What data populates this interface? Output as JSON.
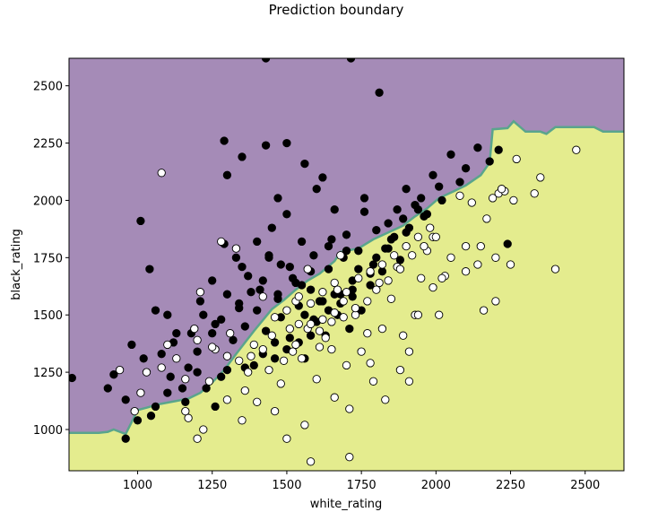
{
  "chart_data": {
    "type": "scatter",
    "title": "Prediction boundary",
    "xlabel": "white_rating",
    "ylabel": "black_rating",
    "xlim": [
      770,
      2630
    ],
    "ylim": [
      820,
      2620
    ],
    "xticks": [
      1000,
      1250,
      1500,
      1750,
      2000,
      2250,
      2500
    ],
    "yticks": [
      1000,
      1250,
      1500,
      1750,
      2000,
      2250,
      2500
    ],
    "grid": false,
    "legend": "none",
    "colors": {
      "region_black": "#a58bb7",
      "region_white": "#e4ec8e",
      "boundary": "#5aa58c",
      "point_black": "#000000",
      "point_white": "#ffffff",
      "point_edge": "#000000"
    },
    "decision_boundary": [
      [
        770,
        985
      ],
      [
        870,
        985
      ],
      [
        900,
        990
      ],
      [
        920,
        1000
      ],
      [
        960,
        980
      ],
      [
        1000,
        1085
      ],
      [
        1030,
        1095
      ],
      [
        1070,
        1110
      ],
      [
        1130,
        1125
      ],
      [
        1170,
        1135
      ],
      [
        1210,
        1160
      ],
      [
        1250,
        1205
      ],
      [
        1290,
        1260
      ],
      [
        1330,
        1330
      ],
      [
        1390,
        1430
      ],
      [
        1450,
        1525
      ],
      [
        1490,
        1565
      ],
      [
        1530,
        1610
      ],
      [
        1570,
        1650
      ],
      [
        1610,
        1680
      ],
      [
        1660,
        1735
      ],
      [
        1680,
        1775
      ],
      [
        1740,
        1790
      ],
      [
        1790,
        1830
      ],
      [
        1840,
        1860
      ],
      [
        1890,
        1890
      ],
      [
        1930,
        1930
      ],
      [
        1970,
        1965
      ],
      [
        2010,
        2010
      ],
      [
        2060,
        2040
      ],
      [
        2100,
        2065
      ],
      [
        2150,
        2110
      ],
      [
        2180,
        2165
      ],
      [
        2190,
        2310
      ],
      [
        2240,
        2315
      ],
      [
        2260,
        2345
      ],
      [
        2300,
        2300
      ],
      [
        2350,
        2300
      ],
      [
        2370,
        2290
      ],
      [
        2400,
        2320
      ],
      [
        2530,
        2320
      ],
      [
        2560,
        2300
      ],
      [
        2630,
        2300
      ]
    ],
    "series": [
      {
        "outcome": "black",
        "x": [
          780,
          900,
          920,
          960,
          980,
          1010,
          1020,
          1045,
          1060,
          1080,
          1100,
          1110,
          1130,
          1150,
          1170,
          1200,
          1210,
          1230,
          1250,
          1260,
          1280,
          1290,
          1300,
          1320,
          1340,
          1350,
          1360,
          1380,
          1390,
          1400,
          1420,
          1430,
          1440,
          1460,
          1470,
          1480,
          1500,
          1510,
          1520,
          1540,
          1550,
          1560,
          1580,
          1590,
          1600,
          1620,
          1630,
          1640,
          1660,
          1670,
          1680,
          1700,
          1710,
          1720,
          1740,
          1750,
          1760,
          1780,
          1790,
          1800,
          1820,
          1830,
          1840,
          1860,
          1870,
          1880,
          1900,
          1910,
          1930,
          1950,
          1970,
          1990,
          2010,
          2050,
          2080,
          2100,
          2140,
          2180,
          2210,
          2240,
          1290,
          1350,
          1430,
          1500,
          1560,
          1300,
          1470,
          1620,
          1760,
          1810,
          1040,
          1180,
          1250,
          1330,
          1400,
          1450,
          1480,
          1530,
          1590,
          1650,
          1700,
          1220,
          1300,
          1370,
          1440,
          1510,
          1580,
          1640,
          1690,
          1740,
          1800,
          1850,
          1890,
          1940,
          1120,
          1260,
          1340,
          1410,
          1470,
          1550,
          1610,
          1660,
          1720,
          1780,
          1840,
          1900,
          1960,
          2020,
          1430,
          1715,
          1560,
          1600,
          1640,
          1680,
          1720,
          1500,
          1540,
          1580,
          1420,
          1460,
          1360,
          1200,
          1280,
          1160,
          1100,
          1060,
          1000,
          960
        ],
        "y": [
          1225,
          1180,
          1240,
          960,
          1370,
          1910,
          1310,
          1060,
          1520,
          1330,
          1500,
          1230,
          1420,
          1180,
          1270,
          1340,
          1560,
          1180,
          1420,
          1100,
          1480,
          1810,
          1260,
          1390,
          1530,
          1710,
          1450,
          1600,
          1280,
          1520,
          1650,
          1430,
          1750,
          1380,
          1590,
          1490,
          1940,
          1400,
          1660,
          1540,
          1820,
          1310,
          1610,
          1480,
          2050,
          1560,
          1410,
          1700,
          1960,
          1500,
          1590,
          1850,
          1440,
          1650,
          1780,
          1520,
          2010,
          1630,
          1720,
          1870,
          1690,
          1790,
          1900,
          1840,
          1960,
          1740,
          2050,
          1880,
          1980,
          2010,
          1940,
          2110,
          2060,
          2200,
          2080,
          2140,
          2230,
          2170,
          2220,
          1810,
          2260,
          2190,
          2240,
          2250,
          2160,
          2110,
          2010,
          2100,
          1950,
          2470,
          1700,
          1420,
          1650,
          1750,
          1820,
          1880,
          1720,
          1640,
          1760,
          1830,
          1780,
          1500,
          1590,
          1670,
          1760,
          1710,
          1690,
          1800,
          1750,
          1700,
          1750,
          1830,
          1920,
          1960,
          1380,
          1460,
          1550,
          1610,
          1570,
          1630,
          1560,
          1590,
          1610,
          1680,
          1790,
          1860,
          1930,
          2000,
          2620,
          2620,
          1500,
          1470,
          1520,
          1550,
          1580,
          1350,
          1380,
          1410,
          1330,
          1310,
          1270,
          1250,
          1230,
          1120,
          1160,
          1100,
          1040,
          1130
        ]
      },
      {
        "outcome": "white",
        "x": [
          940,
          990,
          1010,
          1030,
          1080,
          1100,
          1130,
          1160,
          1170,
          1190,
          1210,
          1220,
          1240,
          1260,
          1280,
          1300,
          1310,
          1330,
          1350,
          1370,
          1390,
          1400,
          1420,
          1440,
          1460,
          1480,
          1500,
          1510,
          1530,
          1550,
          1570,
          1580,
          1600,
          1620,
          1630,
          1650,
          1670,
          1680,
          1700,
          1710,
          1730,
          1750,
          1770,
          1790,
          1810,
          1830,
          1850,
          1870,
          1890,
          1910,
          1930,
          1950,
          1970,
          1990,
          2010,
          2030,
          2050,
          2080,
          2100,
          2140,
          2170,
          2190,
          2200,
          2210,
          2230,
          2250,
          2270,
          2330,
          2350,
          2400,
          2470,
          1080,
          1200,
          1360,
          1460,
          1520,
          1560,
          1610,
          1660,
          1690,
          1710,
          1780,
          1820,
          1880,
          1910,
          1940,
          1990,
          2020,
          2120,
          2160,
          2200,
          1450,
          1490,
          1530,
          1570,
          1610,
          1650,
          1690,
          1730,
          1770,
          1800,
          1840,
          1880,
          1920,
          1960,
          2000,
          1540,
          1580,
          1620,
          1660,
          1700,
          1740,
          1780,
          1820,
          1860,
          1900,
          1940,
          1980,
          1500,
          1540,
          1580,
          1620,
          1660,
          1340,
          1380,
          1420,
          1300,
          1250,
          1200,
          1160,
          2100,
          2150,
          2220,
          2260
        ],
        "y": [
          1260,
          1080,
          1160,
          1250,
          2120,
          1370,
          1310,
          1220,
          1050,
          1440,
          1600,
          1000,
          1210,
          1350,
          1820,
          1130,
          1420,
          1790,
          1040,
          1250,
          1370,
          1120,
          1580,
          1260,
          1490,
          1200,
          960,
          1440,
          1560,
          1310,
          1700,
          860,
          1220,
          1480,
          1400,
          1350,
          1610,
          1760,
          1280,
          880,
          1500,
          1340,
          1420,
          1210,
          1640,
          1130,
          1570,
          1710,
          1410,
          1340,
          1500,
          1660,
          1780,
          1840,
          1500,
          1670,
          1750,
          2020,
          1800,
          1720,
          1920,
          2010,
          1560,
          2030,
          2040,
          1720,
          2180,
          2030,
          2100,
          1700,
          2220,
          1270,
          960,
          1170,
          1080,
          1340,
          1020,
          1360,
          1140,
          1560,
          1090,
          1290,
          1440,
          1260,
          1210,
          1500,
          1620,
          1660,
          1990,
          1520,
          1750,
          1410,
          1300,
          1370,
          1440,
          1430,
          1470,
          1490,
          1530,
          1560,
          1610,
          1650,
          1700,
          1760,
          1800,
          1840,
          1580,
          1550,
          1600,
          1640,
          1600,
          1660,
          1690,
          1720,
          1760,
          1800,
          1840,
          1880,
          1520,
          1460,
          1460,
          1480,
          1510,
          1300,
          1320,
          1350,
          1320,
          1360,
          1390,
          1080,
          1690,
          1800,
          2050,
          2000
        ]
      }
    ]
  }
}
